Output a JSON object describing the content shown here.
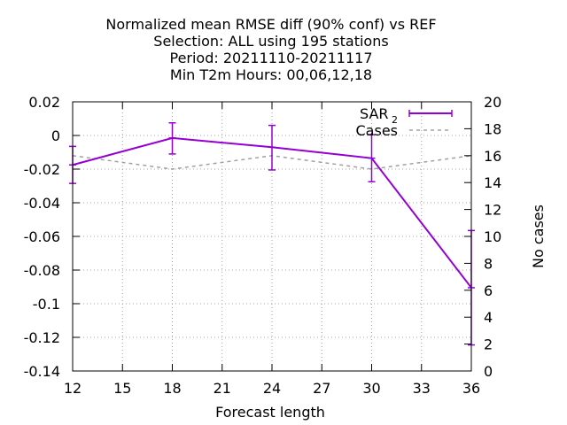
{
  "chart_data": {
    "type": "line",
    "title_lines": [
      "Normalized mean RMSE diff (90% conf) vs REF",
      "Selection: ALL using   195 stations",
      "Period: 20211110-20211117",
      "Min T2m   Hours:  00,06,12,18"
    ],
    "xlabel": "Forecast length",
    "ylabel": "",
    "y2label": "No cases",
    "xlim": [
      12,
      36
    ],
    "ylim": [
      -0.14,
      0.02
    ],
    "y2lim": [
      0,
      20
    ],
    "x_ticks": [
      12,
      15,
      18,
      21,
      24,
      27,
      30,
      33,
      36
    ],
    "y_ticks": [
      0.02,
      0,
      -0.02,
      -0.04,
      -0.06,
      -0.08,
      -0.1,
      -0.12,
      -0.14
    ],
    "y_tick_labels": [
      "0.02",
      "0",
      "-0.02",
      "-0.04",
      "-0.06",
      "-0.08",
      "-0.1",
      "-0.12",
      "-0.14"
    ],
    "y2_ticks": [
      20,
      18,
      16,
      14,
      12,
      10,
      8,
      6,
      4,
      2,
      0
    ],
    "grid": true,
    "legend_position": "top-right",
    "series": [
      {
        "name": "SAR",
        "name_subscript": "2",
        "axis": "left",
        "style": "line-errorbars",
        "color": "#9400d3",
        "x": [
          12,
          18,
          24,
          30,
          36
        ],
        "y": [
          -0.0175,
          -0.0015,
          -0.007,
          -0.0135,
          -0.0905
        ],
        "y_low": [
          -0.0285,
          -0.011,
          -0.0205,
          -0.0275,
          -0.1245
        ],
        "y_high": [
          -0.0065,
          0.0075,
          0.006,
          0.0005,
          -0.0565
        ]
      },
      {
        "name": "Cases",
        "axis": "right",
        "style": "dashed",
        "color": "#a0a0a0",
        "x": [
          12,
          18,
          24,
          30,
          36
        ],
        "y": [
          16,
          15,
          16,
          15,
          16
        ]
      }
    ]
  }
}
